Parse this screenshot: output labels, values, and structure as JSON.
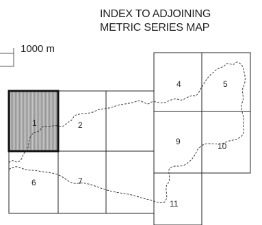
{
  "title_line1": "INDEX TO ADJOINING",
  "title_line2": "METRIC SERIES MAP",
  "scale_label": "1000 m",
  "sheets": [
    {
      "number": "1",
      "highlighted": true
    },
    {
      "number": "2",
      "highlighted": false
    },
    {
      "number": "",
      "highlighted": false
    },
    {
      "number": "4",
      "highlighted": false
    },
    {
      "number": "5",
      "highlighted": false
    },
    {
      "number": "6",
      "highlighted": false
    },
    {
      "number": "7",
      "highlighted": false
    },
    {
      "number": "9",
      "highlighted": false
    },
    {
      "number": "10",
      "highlighted": false
    },
    {
      "number": "11",
      "highlighted": false
    }
  ],
  "colors": {
    "grid_line": "#222222",
    "highlight_fill": "#b8b8b8",
    "boundary": "#333333"
  }
}
